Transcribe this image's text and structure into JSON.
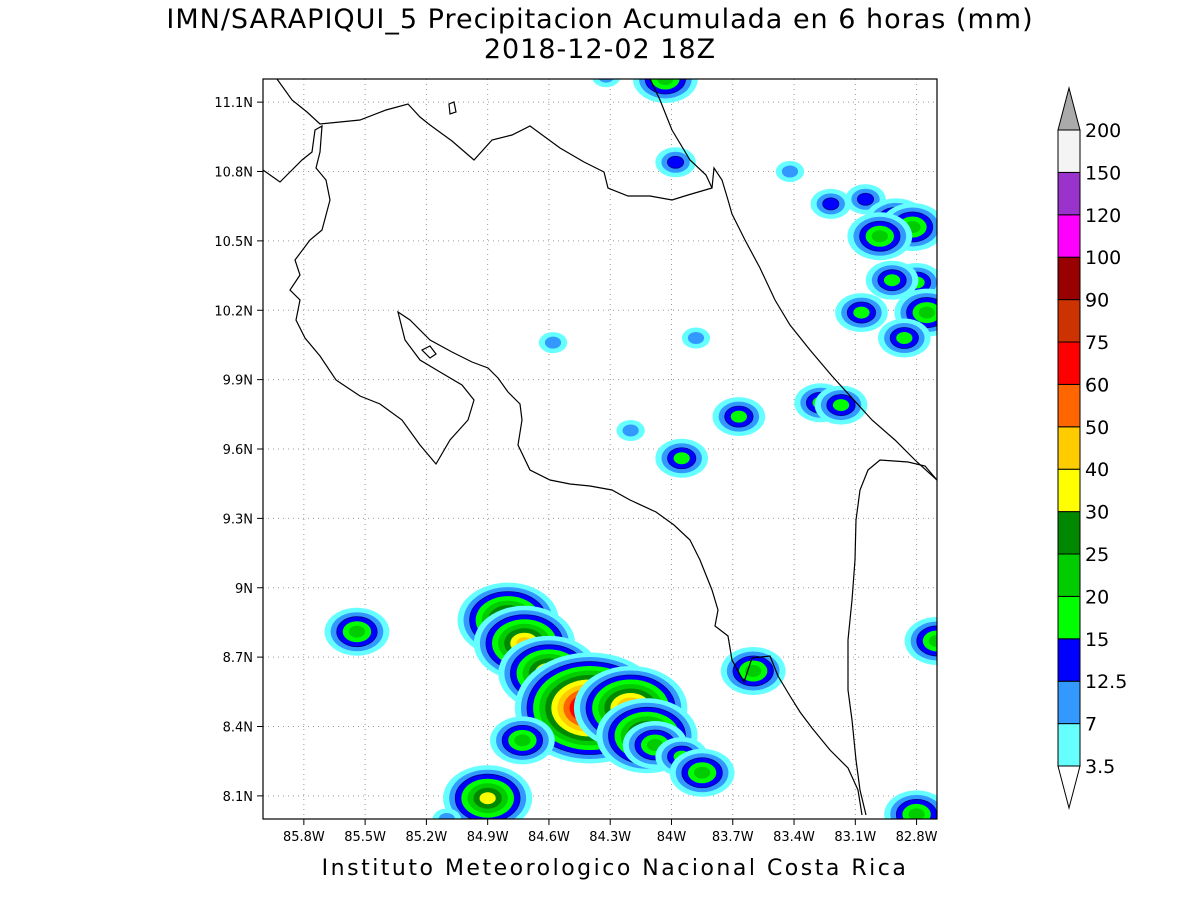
{
  "title": {
    "line1": "IMN/SARAPIQUI_5 Precipitacion Acumulada en 6 horas (mm)",
    "line2": "2018-12-02 18Z"
  },
  "footer": "Instituto Meteorologico Nacional Costa Rica",
  "axes": {
    "lon_range": [
      -86.0,
      -82.7
    ],
    "lat_range": [
      8.0,
      11.2
    ],
    "x_ticks": [
      "85.8W",
      "85.5W",
      "85.2W",
      "84.9W",
      "84.6W",
      "84.3W",
      "84W",
      "83.7W",
      "83.4W",
      "83.1W",
      "82.8W"
    ],
    "x_tick_values": [
      -85.8,
      -85.5,
      -85.2,
      -84.9,
      -84.6,
      -84.3,
      -84.0,
      -83.7,
      -83.4,
      -83.1,
      -82.8
    ],
    "y_ticks": [
      "8.1N",
      "8.4N",
      "8.7N",
      "9N",
      "9.3N",
      "9.6N",
      "9.9N",
      "10.2N",
      "10.5N",
      "10.8N",
      "11.1N"
    ],
    "y_tick_values": [
      8.1,
      8.4,
      8.7,
      9.0,
      9.3,
      9.6,
      9.9,
      10.2,
      10.5,
      10.8,
      11.1
    ],
    "grid": "dotted"
  },
  "legend": {
    "labels": [
      "3.5",
      "7",
      "12.5",
      "15",
      "20",
      "25",
      "30",
      "40",
      "50",
      "60",
      "75",
      "90",
      "100",
      "120",
      "150",
      "200"
    ],
    "colors": [
      "#66ffff",
      "#3399ff",
      "#0000ff",
      "#00ff00",
      "#00cc00",
      "#008800",
      "#ffff00",
      "#ffcc00",
      "#ff6600",
      "#ff0000",
      "#cc3300",
      "#990000",
      "#ff00ff",
      "#9933cc",
      "#f4f4f4",
      "#aaaaaa"
    ]
  },
  "map": {
    "region": "Costa Rica",
    "rain_cells": [
      {
        "lon": -84.03,
        "lat": 11.2,
        "level": 4
      },
      {
        "lon": -84.32,
        "lat": 11.21,
        "level": 1
      },
      {
        "lon": -83.98,
        "lat": 10.84,
        "level": 2
      },
      {
        "lon": -83.42,
        "lat": 10.8,
        "level": 1
      },
      {
        "lon": -83.05,
        "lat": 10.68,
        "level": 2
      },
      {
        "lon": -82.9,
        "lat": 10.58,
        "level": 4
      },
      {
        "lon": -82.82,
        "lat": 10.56,
        "level": 4
      },
      {
        "lon": -82.98,
        "lat": 10.52,
        "level": 4
      },
      {
        "lon": -83.22,
        "lat": 10.66,
        "level": 2
      },
      {
        "lon": -82.8,
        "lat": 10.32,
        "level": 3
      },
      {
        "lon": -82.92,
        "lat": 10.33,
        "level": 3
      },
      {
        "lon": -82.75,
        "lat": 10.19,
        "level": 4
      },
      {
        "lon": -83.07,
        "lat": 10.19,
        "level": 3
      },
      {
        "lon": -82.86,
        "lat": 10.08,
        "level": 3
      },
      {
        "lon": -83.88,
        "lat": 10.08,
        "level": 1
      },
      {
        "lon": -84.58,
        "lat": 10.06,
        "level": 1
      },
      {
        "lon": -83.67,
        "lat": 9.74,
        "level": 3
      },
      {
        "lon": -83.27,
        "lat": 9.8,
        "level": 3
      },
      {
        "lon": -83.17,
        "lat": 9.79,
        "level": 3
      },
      {
        "lon": -84.2,
        "lat": 9.68,
        "level": 1
      },
      {
        "lon": -83.95,
        "lat": 9.56,
        "level": 3
      },
      {
        "lon": -85.54,
        "lat": 8.81,
        "level": 4
      },
      {
        "lon": -83.6,
        "lat": 8.64,
        "level": 4
      },
      {
        "lon": -82.7,
        "lat": 8.77,
        "level": 4
      },
      {
        "lon": -84.8,
        "lat": 8.86,
        "level": 7
      },
      {
        "lon": -84.72,
        "lat": 8.76,
        "level": 7
      },
      {
        "lon": -84.6,
        "lat": 8.63,
        "level": 7
      },
      {
        "lon": -84.48,
        "lat": 8.5,
        "level": 6
      },
      {
        "lon": -84.4,
        "lat": 8.48,
        "level": 11
      },
      {
        "lon": -84.2,
        "lat": 8.48,
        "level": 8
      },
      {
        "lon": -84.12,
        "lat": 8.36,
        "level": 7
      },
      {
        "lon": -84.08,
        "lat": 8.32,
        "level": 4
      },
      {
        "lon": -83.95,
        "lat": 8.27,
        "level": 3
      },
      {
        "lon": -83.85,
        "lat": 8.2,
        "level": 4
      },
      {
        "lon": -84.73,
        "lat": 8.34,
        "level": 4
      },
      {
        "lon": -84.9,
        "lat": 8.09,
        "level": 6
      },
      {
        "lon": -85.1,
        "lat": 8.0,
        "level": 1
      },
      {
        "lon": -82.8,
        "lat": 8.02,
        "level": 4
      }
    ]
  }
}
